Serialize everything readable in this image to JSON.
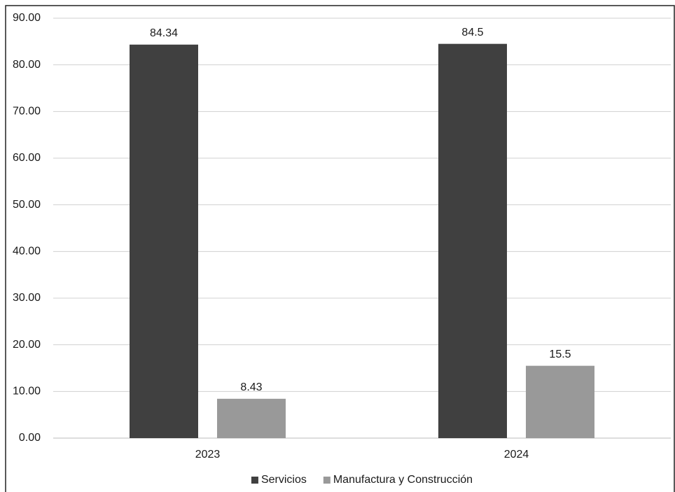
{
  "chart_data": {
    "type": "bar",
    "categories": [
      "2023",
      "2024"
    ],
    "series": [
      {
        "name": "Servicios",
        "color": "#404040",
        "values": [
          84.34,
          84.5
        ]
      },
      {
        "name": "Manufactura y Construcción",
        "color": "#999999",
        "values": [
          8.43,
          15.5
        ]
      }
    ],
    "ylim": [
      0,
      90
    ],
    "yticks": [
      {
        "value": 0,
        "label": "0.00"
      },
      {
        "value": 10,
        "label": "10.00"
      },
      {
        "value": 20,
        "label": "20.00"
      },
      {
        "value": 30,
        "label": "30.00"
      },
      {
        "value": 40,
        "label": "40.00"
      },
      {
        "value": 50,
        "label": "50.00"
      },
      {
        "value": 60,
        "label": "60.00"
      },
      {
        "value": 70,
        "label": "70.00"
      },
      {
        "value": 80,
        "label": "80.00"
      },
      {
        "value": 90,
        "label": "90.00"
      }
    ],
    "grid": true,
    "legend": "bottom"
  }
}
